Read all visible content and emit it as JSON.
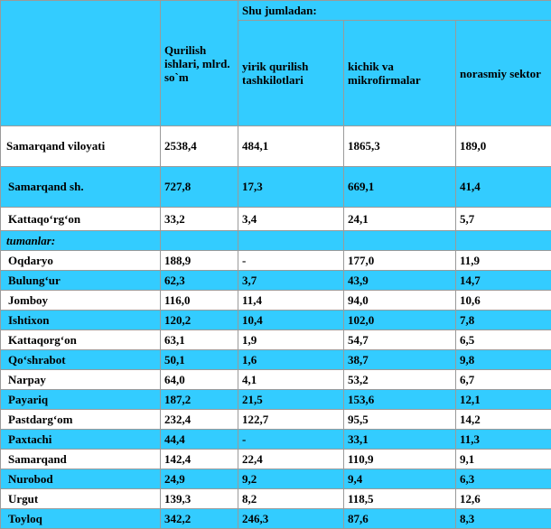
{
  "header": {
    "subgroup_title": "Shu jumladan:",
    "col_total": "Qurilish ishlari, mlrd. so`m",
    "col_large": "yirik qurilish tashkilotlari",
    "col_small": "kichik va mikrofirmalar",
    "col_informal": "norasmiy sektor"
  },
  "summary_rows": [
    {
      "name": "Samarqand viloyati",
      "total": "2538,4",
      "large": "484,1",
      "small": "1865,3",
      "informal": "189,0"
    },
    {
      "name": "Samarqand  sh.",
      "total": "727,8",
      "large": "17,3",
      "small": "669,1",
      "informal": "41,4"
    },
    {
      "name": "Kattaqo‘rg‘on",
      "total": "33,2",
      "large": "3,4",
      "small": "24,1",
      "informal": "5,7"
    }
  ],
  "group_label": "tumanlar:",
  "district_rows": [
    {
      "name": "Oqdaryo",
      "total": "188,9",
      "large": "-",
      "small": "177,0",
      "informal": "11,9"
    },
    {
      "name": "Bulung‘ur",
      "total": "62,3",
      "large": "3,7",
      "small": "43,9",
      "informal": "14,7"
    },
    {
      "name": "Jomboy",
      "total": "116,0",
      "large": "11,4",
      "small": "94,0",
      "informal": "10,6"
    },
    {
      "name": "Ishtixon",
      "total": "120,2",
      "large": "10,4",
      "small": "102,0",
      "informal": "7,8"
    },
    {
      "name": "Kattaqorg‘on",
      "total": "63,1",
      "large": "1,9",
      "small": "54,7",
      "informal": "6,5"
    },
    {
      "name": "Qo‘shrabot",
      "total": "50,1",
      "large": "1,6",
      "small": "38,7",
      "informal": "9,8"
    },
    {
      "name": "Narpay",
      "total": "64,0",
      "large": "4,1",
      "small": "53,2",
      "informal": "6,7"
    },
    {
      "name": "Payariq",
      "total": "187,2",
      "large": "21,5",
      "small": "153,6",
      "informal": "12,1"
    },
    {
      "name": "Pastdarg‘om",
      "total": "232,4",
      "large": "122,7",
      "small": "95,5",
      "informal": "14,2"
    },
    {
      "name": "Paxtachi",
      "total": "44,4",
      "large": "-",
      "small": "33,1",
      "informal": "11,3"
    },
    {
      "name": "Samarqand",
      "total": "142,4",
      "large": "22,4",
      "small": "110,9",
      "informal": "9,1"
    },
    {
      "name": "Nurobod",
      "total": "24,9",
      "large": "9,2",
      "small": "9,4",
      "informal": "6,3"
    },
    {
      "name": "Urgut",
      "total": "139,3",
      "large": "8,2",
      "small": "118,5",
      "informal": "12,6"
    },
    {
      "name": "Toyloq",
      "total": "342,2",
      "large": "246,3",
      "small": "87,6",
      "informal": "8,3"
    }
  ],
  "colors": {
    "row_blue": "#33ccff",
    "row_white": "#ffffff",
    "border": "#9a9a9a"
  }
}
